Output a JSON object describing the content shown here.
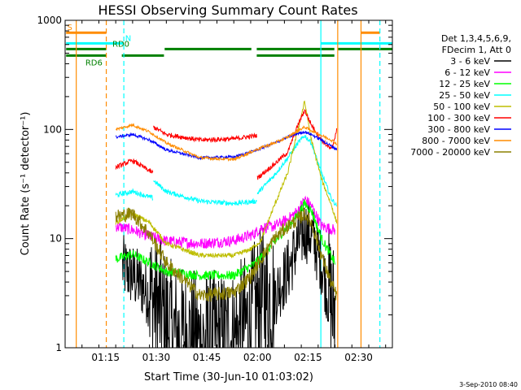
{
  "chart_data": {
    "type": "line",
    "title": "HESSI Observing Summary Count Rates",
    "xlabel": "Start Time (30-Jun-10 01:03:02)",
    "ylabel": "Count Rate (s⁻¹ detector⁻¹)",
    "x_unit": "minutes after 01:03:02 UT",
    "xlim": [
      0,
      97
    ],
    "ylim": [
      1,
      1000
    ],
    "yscale": "log",
    "x_ticks": [
      {
        "label": "01:15",
        "value": 12
      },
      {
        "label": "01:30",
        "value": 27
      },
      {
        "label": "01:45",
        "value": 42
      },
      {
        "label": "02:00",
        "value": 57
      },
      {
        "label": "02:15",
        "value": 72
      },
      {
        "label": "02:30",
        "value": 87
      }
    ],
    "y_ticks": [
      {
        "label": "1",
        "value": 1
      },
      {
        "label": "10",
        "value": 10
      },
      {
        "label": "100",
        "value": 100
      },
      {
        "label": "1000",
        "value": 1000
      }
    ],
    "legend_header": [
      "Det 1,3,4,5,6,9,",
      "FDecim 1, Att 0"
    ],
    "legend_position": "right",
    "series": [
      {
        "name": "3 - 6 keV",
        "color": "#000000",
        "noise": 0.7,
        "segments": [
          [
            [
              17,
              5.5
            ],
            [
              22,
              4
            ],
            [
              27,
              2.5
            ],
            [
              32,
              1.3
            ],
            [
              40,
              1.1
            ],
            [
              50,
              1.2
            ],
            [
              55,
              1.8
            ],
            [
              58,
              2.8
            ],
            [
              62,
              3
            ],
            [
              66,
              5
            ],
            [
              69,
              9
            ],
            [
              71,
              12
            ],
            [
              73,
              11
            ],
            [
              76,
              6
            ],
            [
              78,
              3
            ],
            [
              80,
              2
            ]
          ]
        ]
      },
      {
        "name": "6 - 12 keV",
        "color": "#ff00ff",
        "noise": 0.12,
        "segments": [
          [
            [
              15,
              13
            ],
            [
              20,
              12
            ],
            [
              25,
              10.5
            ],
            [
              30,
              9.5
            ],
            [
              40,
              9
            ],
            [
              50,
              9.6
            ],
            [
              56,
              11
            ],
            [
              58,
              12.5
            ],
            [
              62,
              13
            ],
            [
              66,
              15
            ],
            [
              69,
              18
            ],
            [
              71,
              23
            ],
            [
              73,
              20
            ],
            [
              76,
              13
            ],
            [
              80,
              12
            ]
          ]
        ]
      },
      {
        "name": "12 - 25 keV",
        "color": "#00ff00",
        "noise": 0.1,
        "segments": [
          [
            [
              15,
              6.5
            ],
            [
              20,
              7.2
            ],
            [
              25,
              6
            ],
            [
              30,
              5
            ],
            [
              40,
              4.6
            ],
            [
              50,
              4.6
            ],
            [
              56,
              5.8
            ],
            [
              60,
              7.8
            ],
            [
              64,
              11
            ],
            [
              68,
              15
            ],
            [
              71,
              21
            ],
            [
              73,
              18
            ],
            [
              76,
              10
            ],
            [
              80,
              6
            ]
          ]
        ]
      },
      {
        "name": "25 - 50 keV",
        "color": "#00ffff",
        "noise": 0.05,
        "segments": [
          [
            [
              15,
              25
            ],
            [
              20,
              27
            ],
            [
              26,
              23.5
            ]
          ],
          [
            [
              26.2,
              34
            ],
            [
              30,
              27
            ],
            [
              40,
              22
            ],
            [
              50,
              21
            ],
            [
              56.8,
              22
            ]
          ],
          [
            [
              57,
              26
            ],
            [
              62,
              38
            ],
            [
              66,
              55
            ],
            [
              69,
              75
            ],
            [
              71,
              88
            ],
            [
              73,
              75
            ],
            [
              76,
              40
            ],
            [
              79,
              23
            ],
            [
              80.5,
              20
            ]
          ]
        ]
      },
      {
        "name": "50 - 100 keV",
        "color": "#bebe00",
        "noise": 0.05,
        "segments": [
          [
            [
              15,
              14
            ],
            [
              20,
              17
            ],
            [
              25,
              14
            ],
            [
              30,
              9
            ],
            [
              40,
              7
            ],
            [
              50,
              7
            ],
            [
              55,
              8
            ],
            [
              58,
              9.5
            ],
            [
              62,
              20
            ],
            [
              66,
              40
            ],
            [
              69,
              100
            ],
            [
              71,
              180
            ],
            [
              73,
              80
            ],
            [
              76,
              35
            ],
            [
              79,
              20
            ],
            [
              80.5,
              14
            ]
          ]
        ]
      },
      {
        "name": "100 - 300 keV",
        "color": "#ff0000",
        "noise": 0.05,
        "segments": [
          [
            [
              15,
              45
            ],
            [
              20,
              52
            ],
            [
              26,
              40
            ]
          ],
          [
            [
              26.2,
              105
            ],
            [
              30,
              90
            ],
            [
              40,
              80
            ],
            [
              50,
              82
            ],
            [
              56.8,
              88
            ]
          ],
          [
            [
              57,
              36
            ],
            [
              62,
              48
            ],
            [
              66,
              62
            ],
            [
              69,
              110
            ],
            [
              71,
              150
            ],
            [
              73,
              110
            ],
            [
              76,
              80
            ],
            [
              79,
              65
            ],
            [
              80.5,
              100
            ]
          ]
        ]
      },
      {
        "name": "300 - 800 keV",
        "color": "#0000ff",
        "noise": 0.03,
        "segments": [
          [
            [
              15,
              85
            ],
            [
              20,
              90
            ],
            [
              25,
              80
            ],
            [
              30,
              65
            ],
            [
              40,
              55
            ],
            [
              50,
              56
            ],
            [
              55,
              62
            ],
            [
              58,
              67
            ],
            [
              62,
              75
            ],
            [
              66,
              85
            ],
            [
              69,
              92
            ],
            [
              71,
              95
            ],
            [
              73,
              90
            ],
            [
              76,
              80
            ],
            [
              79,
              70
            ],
            [
              80.5,
              66
            ]
          ]
        ]
      },
      {
        "name": "800 - 7000 keV",
        "color": "#ff8c00",
        "noise": 0.03,
        "segments": [
          [
            [
              15,
              100
            ],
            [
              20,
              110
            ],
            [
              25,
              95
            ],
            [
              30,
              75
            ],
            [
              40,
              55
            ],
            [
              50,
              53
            ],
            [
              55,
              62
            ],
            [
              58,
              68
            ],
            [
              62,
              75
            ],
            [
              66,
              85
            ],
            [
              69,
              98
            ],
            [
              71,
              105
            ],
            [
              73,
              98
            ],
            [
              76,
              88
            ],
            [
              79,
              80
            ],
            [
              80.5,
              74
            ]
          ]
        ]
      },
      {
        "name": "7000 - 20000 keV",
        "color": "#8b8000",
        "noise": 0.15,
        "segments": [
          [
            [
              15,
              16
            ],
            [
              20,
              17
            ],
            [
              25,
              11
            ],
            [
              30,
              6
            ],
            [
              40,
              3
            ],
            [
              50,
              3.2
            ],
            [
              55,
              4.5
            ],
            [
              58,
              6.5
            ],
            [
              62,
              10
            ],
            [
              66,
              13
            ],
            [
              69,
              15
            ],
            [
              71,
              17
            ],
            [
              73,
              14
            ],
            [
              76,
              7
            ],
            [
              79,
              3.8
            ],
            [
              80.5,
              3
            ]
          ]
        ]
      }
    ],
    "vertical_lines": [
      {
        "x": 3.3,
        "color": "#ff8c00",
        "dash": false
      },
      {
        "x": 12.2,
        "color": "#ff8c00",
        "dash": true
      },
      {
        "x": 17.4,
        "color": "#00ffff",
        "dash": true
      },
      {
        "x": 75.8,
        "color": "#00ffff",
        "dash": false
      },
      {
        "x": 80.8,
        "color": "#ff8c00",
        "dash": false
      },
      {
        "x": 87.7,
        "color": "#ff8c00",
        "dash": false
      },
      {
        "x": 93.3,
        "color": "#00ffff",
        "dash": true
      }
    ],
    "flag_bars": [
      {
        "label": "S",
        "color": "#ff8c00",
        "y": 770,
        "ranges": [
          [
            0.3,
            12.2
          ],
          [
            87.7,
            93.3
          ]
        ]
      },
      {
        "label": "N",
        "color": "#00ffff",
        "y": 615,
        "ranges": [
          [
            0.3,
            17.4
          ],
          [
            75.8,
            97
          ]
        ]
      },
      {
        "label": "RD0",
        "color": "#008000",
        "y": 545,
        "ranges": [
          [
            0.3,
            12.2
          ],
          [
            29.5,
            55.2
          ],
          [
            56.8,
            79.8
          ],
          [
            80.8,
            97
          ]
        ]
      },
      {
        "label": "RD6",
        "color": "#008000",
        "y": 475,
        "ranges": [
          [
            0.3,
            12.2
          ],
          [
            16.8,
            29.3
          ],
          [
            56.8,
            79.8
          ]
        ]
      }
    ]
  },
  "timestamp": "3-Sep-2010 08:40"
}
